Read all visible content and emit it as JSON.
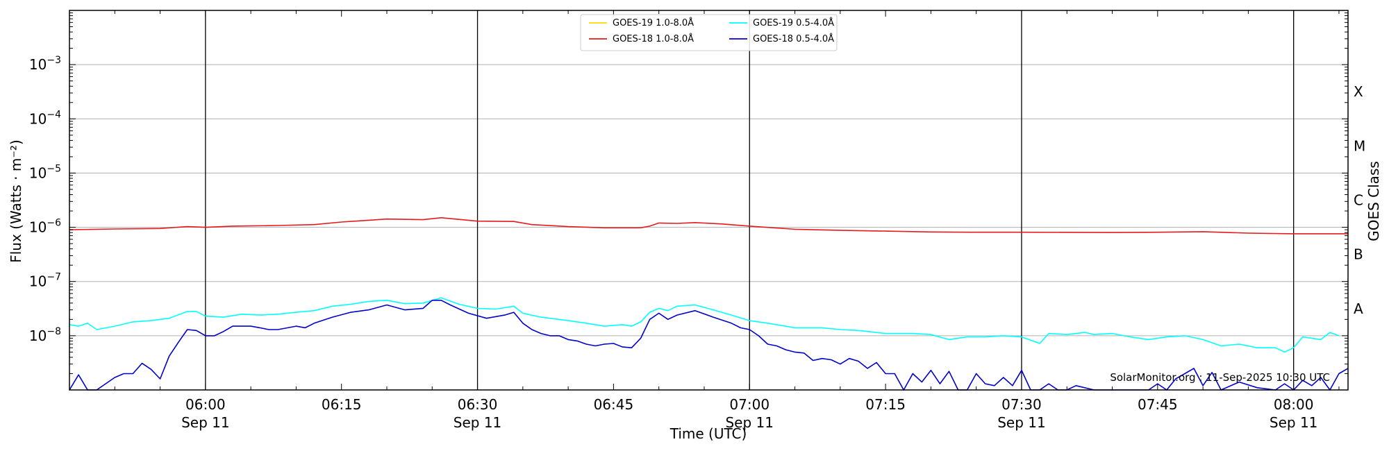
{
  "chart_data": {
    "type": "line",
    "xlabel": "Time (UTC)",
    "ylabel": "Flux (Watts · m⁻²)",
    "y2label": "GOES Class",
    "yscale": "log",
    "xlim": [
      "05:45",
      "08:06"
    ],
    "ylim": [
      1e-09,
      0.01
    ],
    "grid": "horizontal",
    "legend_position": "top-center",
    "credit": "SolarMonitor.org : 11-Sep-2025 10:30 UTC",
    "x_ticks": [
      {
        "time": "06:00",
        "label": "06:00",
        "sublabel": "Sep 11"
      },
      {
        "time": "06:15",
        "label": "06:15",
        "sublabel": ""
      },
      {
        "time": "06:30",
        "label": "06:30",
        "sublabel": "Sep 11"
      },
      {
        "time": "06:45",
        "label": "06:45",
        "sublabel": ""
      },
      {
        "time": "07:00",
        "label": "07:00",
        "sublabel": "Sep 11"
      },
      {
        "time": "07:15",
        "label": "07:15",
        "sublabel": ""
      },
      {
        "time": "07:30",
        "label": "07:30",
        "sublabel": "Sep 11"
      },
      {
        "time": "07:45",
        "label": "07:45",
        "sublabel": ""
      },
      {
        "time": "08:00",
        "label": "08:00",
        "sublabel": "Sep 11"
      }
    ],
    "vlines": [
      "06:00",
      "06:30",
      "07:00",
      "07:30",
      "08:00"
    ],
    "y_ticks": [
      {
        "exp": -3,
        "base": "10",
        "sup": "−3"
      },
      {
        "exp": -4,
        "base": "10",
        "sup": "−4"
      },
      {
        "exp": -5,
        "base": "10",
        "sup": "−5"
      },
      {
        "exp": -6,
        "base": "10",
        "sup": "−6"
      },
      {
        "exp": -7,
        "base": "10",
        "sup": "−7"
      },
      {
        "exp": -8,
        "base": "10",
        "sup": "−8"
      }
    ],
    "goes_classes": [
      {
        "label": "X",
        "value": 0.0001
      },
      {
        "label": "M",
        "value": 1e-05
      },
      {
        "label": "C",
        "value": 1e-06
      },
      {
        "label": "B",
        "value": 1e-07
      },
      {
        "label": "A",
        "value": 1e-08
      }
    ],
    "series": [
      {
        "name": "GOES-19 1.0-8.0Å",
        "color": "#ffd700",
        "points": []
      },
      {
        "name": "GOES-18 1.0-8.0Å",
        "color": "#e41a1c",
        "points": [
          [
            "05:45",
            9e-07
          ],
          [
            "05:50",
            9.3e-07
          ],
          [
            "05:55",
            9.5e-07
          ],
          [
            "05:58",
            1.03e-06
          ],
          [
            "06:00",
            1e-06
          ],
          [
            "06:03",
            1.05e-06
          ],
          [
            "06:08",
            1.08e-06
          ],
          [
            "06:12",
            1.12e-06
          ],
          [
            "06:15",
            1.25e-06
          ],
          [
            "06:18",
            1.35e-06
          ],
          [
            "06:20",
            1.42e-06
          ],
          [
            "06:24",
            1.38e-06
          ],
          [
            "06:26",
            1.5e-06
          ],
          [
            "06:30",
            1.3e-06
          ],
          [
            "06:34",
            1.28e-06
          ],
          [
            "06:36",
            1.12e-06
          ],
          [
            "06:40",
            1.03e-06
          ],
          [
            "06:44",
            9.8e-07
          ],
          [
            "06:48",
            9.8e-07
          ],
          [
            "06:49",
            1.05e-06
          ],
          [
            "06:50",
            1.2e-06
          ],
          [
            "06:52",
            1.18e-06
          ],
          [
            "06:54",
            1.22e-06
          ],
          [
            "06:57",
            1.15e-06
          ],
          [
            "07:00",
            1.05e-06
          ],
          [
            "07:05",
            9.2e-07
          ],
          [
            "07:10",
            8.8e-07
          ],
          [
            "07:15",
            8.5e-07
          ],
          [
            "07:20",
            8.2e-07
          ],
          [
            "07:25",
            8.1e-07
          ],
          [
            "07:30",
            8.1e-07
          ],
          [
            "07:40",
            8e-07
          ],
          [
            "07:45",
            8.1e-07
          ],
          [
            "07:50",
            8.3e-07
          ],
          [
            "07:55",
            7.8e-07
          ],
          [
            "08:00",
            7.6e-07
          ],
          [
            "08:06",
            7.6e-07
          ]
        ]
      },
      {
        "name": "GOES-19 0.5-4.0Å",
        "color": "#00ffff",
        "points": [
          [
            "05:45",
            1.6e-08
          ],
          [
            "05:46",
            1.5e-08
          ],
          [
            "05:47",
            1.7e-08
          ],
          [
            "05:48",
            1.3e-08
          ],
          [
            "05:50",
            1.5e-08
          ],
          [
            "05:52",
            1.8e-08
          ],
          [
            "05:54",
            1.9e-08
          ],
          [
            "05:56",
            2.1e-08
          ],
          [
            "05:58",
            2.8e-08
          ],
          [
            "05:59",
            2.8e-08
          ],
          [
            "06:00",
            2.3e-08
          ],
          [
            "06:02",
            2.2e-08
          ],
          [
            "06:04",
            2.5e-08
          ],
          [
            "06:06",
            2.4e-08
          ],
          [
            "06:08",
            2.5e-08
          ],
          [
            "06:10",
            2.7e-08
          ],
          [
            "06:12",
            2.9e-08
          ],
          [
            "06:14",
            3.5e-08
          ],
          [
            "06:16",
            3.8e-08
          ],
          [
            "06:18",
            4.3e-08
          ],
          [
            "06:20",
            4.5e-08
          ],
          [
            "06:22",
            3.9e-08
          ],
          [
            "06:24",
            4e-08
          ],
          [
            "06:26",
            5e-08
          ],
          [
            "06:28",
            3.8e-08
          ],
          [
            "06:30",
            3.2e-08
          ],
          [
            "06:32",
            3.1e-08
          ],
          [
            "06:34",
            3.5e-08
          ],
          [
            "06:35",
            2.6e-08
          ],
          [
            "06:37",
            2.2e-08
          ],
          [
            "06:40",
            1.9e-08
          ],
          [
            "06:42",
            1.7e-08
          ],
          [
            "06:44",
            1.5e-08
          ],
          [
            "06:46",
            1.6e-08
          ],
          [
            "06:47",
            1.5e-08
          ],
          [
            "06:48",
            1.8e-08
          ],
          [
            "06:49",
            2.7e-08
          ],
          [
            "06:50",
            3.2e-08
          ],
          [
            "06:51",
            2.9e-08
          ],
          [
            "06:52",
            3.5e-08
          ],
          [
            "06:54",
            3.7e-08
          ],
          [
            "06:56",
            3e-08
          ],
          [
            "06:58",
            2.4e-08
          ],
          [
            "07:00",
            1.9e-08
          ],
          [
            "07:02",
            1.7e-08
          ],
          [
            "07:05",
            1.4e-08
          ],
          [
            "07:08",
            1.4e-08
          ],
          [
            "07:10",
            1.3e-08
          ],
          [
            "07:12",
            1.25e-08
          ],
          [
            "07:15",
            1.1e-08
          ],
          [
            "07:18",
            1.1e-08
          ],
          [
            "07:20",
            1.05e-08
          ],
          [
            "07:22",
            8.5e-09
          ],
          [
            "07:24",
            9.5e-09
          ],
          [
            "07:26",
            9.5e-09
          ],
          [
            "07:28",
            1e-08
          ],
          [
            "07:30",
            9.5e-09
          ],
          [
            "07:32",
            7.2e-09
          ],
          [
            "07:33",
            1.1e-08
          ],
          [
            "07:35",
            1.05e-08
          ],
          [
            "07:37",
            1.15e-08
          ],
          [
            "07:38",
            1.05e-08
          ],
          [
            "07:40",
            1.1e-08
          ],
          [
            "07:42",
            9.5e-09
          ],
          [
            "07:44",
            8.5e-09
          ],
          [
            "07:46",
            9.5e-09
          ],
          [
            "07:48",
            1e-08
          ],
          [
            "07:50",
            8.5e-09
          ],
          [
            "07:52",
            6.5e-09
          ],
          [
            "07:54",
            7e-09
          ],
          [
            "07:56",
            6e-09
          ],
          [
            "07:58",
            6e-09
          ],
          [
            "07:59",
            5e-09
          ],
          [
            "08:00",
            6e-09
          ],
          [
            "08:01",
            9.5e-09
          ],
          [
            "08:03",
            8.5e-09
          ],
          [
            "08:04",
            1.15e-08
          ],
          [
            "08:05",
            1e-08
          ]
        ]
      },
      {
        "name": "GOES-18 0.5-4.0Å",
        "color": "#0000cc",
        "points": [
          [
            "05:45",
            1e-09
          ],
          [
            "05:46",
            1.9e-09
          ],
          [
            "05:47",
            1e-09
          ],
          [
            "05:48",
            8e-10
          ],
          [
            "05:50",
            1.7e-09
          ],
          [
            "05:51",
            2e-09
          ],
          [
            "05:52",
            2e-09
          ],
          [
            "05:53",
            3.1e-09
          ],
          [
            "05:54",
            2.4e-09
          ],
          [
            "05:55",
            1.6e-09
          ],
          [
            "05:56",
            4.2e-09
          ],
          [
            "05:57",
            7.5e-09
          ],
          [
            "05:58",
            1.3e-08
          ],
          [
            "05:59",
            1.25e-08
          ],
          [
            "06:00",
            1e-08
          ],
          [
            "06:01",
            1e-08
          ],
          [
            "06:02",
            1.2e-08
          ],
          [
            "06:03",
            1.5e-08
          ],
          [
            "06:05",
            1.5e-08
          ],
          [
            "06:06",
            1.4e-08
          ],
          [
            "06:07",
            1.3e-08
          ],
          [
            "06:08",
            1.3e-08
          ],
          [
            "06:10",
            1.5e-08
          ],
          [
            "06:11",
            1.4e-08
          ],
          [
            "06:12",
            1.7e-08
          ],
          [
            "06:14",
            2.2e-08
          ],
          [
            "06:16",
            2.7e-08
          ],
          [
            "06:18",
            3e-08
          ],
          [
            "06:20",
            3.7e-08
          ],
          [
            "06:22",
            3e-08
          ],
          [
            "06:24",
            3.2e-08
          ],
          [
            "06:25",
            4.5e-08
          ],
          [
            "06:26",
            4.5e-08
          ],
          [
            "06:27",
            3.7e-08
          ],
          [
            "06:29",
            2.6e-08
          ],
          [
            "06:31",
            2.1e-08
          ],
          [
            "06:33",
            2.4e-08
          ],
          [
            "06:34",
            2.7e-08
          ],
          [
            "06:35",
            1.7e-08
          ],
          [
            "06:36",
            1.3e-08
          ],
          [
            "06:37",
            1.1e-08
          ],
          [
            "06:38",
            1e-08
          ],
          [
            "06:39",
            1e-08
          ],
          [
            "06:40",
            8.5e-09
          ],
          [
            "06:41",
            8e-09
          ],
          [
            "06:42",
            7e-09
          ],
          [
            "06:43",
            6.5e-09
          ],
          [
            "06:44",
            7e-09
          ],
          [
            "06:45",
            7.2e-09
          ],
          [
            "06:46",
            6.2e-09
          ],
          [
            "06:47",
            6e-09
          ],
          [
            "06:48",
            9e-09
          ],
          [
            "06:49",
            2e-08
          ],
          [
            "06:50",
            2.6e-08
          ],
          [
            "06:51",
            2e-08
          ],
          [
            "06:52",
            2.4e-08
          ],
          [
            "06:54",
            2.9e-08
          ],
          [
            "06:56",
            2.2e-08
          ],
          [
            "06:58",
            1.7e-08
          ],
          [
            "06:59",
            1.4e-08
          ],
          [
            "07:00",
            1.3e-08
          ],
          [
            "07:01",
            1e-08
          ],
          [
            "07:02",
            7e-09
          ],
          [
            "07:03",
            6.5e-09
          ],
          [
            "07:04",
            5.5e-09
          ],
          [
            "07:05",
            5e-09
          ],
          [
            "07:06",
            4.8e-09
          ],
          [
            "07:07",
            3.5e-09
          ],
          [
            "07:08",
            3.8e-09
          ],
          [
            "07:09",
            3.6e-09
          ],
          [
            "07:10",
            3e-09
          ],
          [
            "07:11",
            3.8e-09
          ],
          [
            "07:12",
            3.4e-09
          ],
          [
            "07:13",
            2.5e-09
          ],
          [
            "07:14",
            3.2e-09
          ],
          [
            "07:15",
            2e-09
          ],
          [
            "07:16",
            2e-09
          ],
          [
            "07:17",
            1e-09
          ],
          [
            "07:18",
            2e-09
          ],
          [
            "07:19",
            1.4e-09
          ],
          [
            "07:20",
            2.3e-09
          ],
          [
            "07:21",
            1.3e-09
          ],
          [
            "07:22",
            2.2e-09
          ],
          [
            "07:23",
            1e-09
          ],
          [
            "07:24",
            8e-10
          ],
          [
            "07:25",
            2e-09
          ],
          [
            "07:26",
            1.3e-09
          ],
          [
            "07:27",
            1.2e-09
          ],
          [
            "07:28",
            1.7e-09
          ],
          [
            "07:29",
            1.2e-09
          ],
          [
            "07:30",
            2.3e-09
          ],
          [
            "07:31",
            8e-10
          ],
          [
            "07:32",
            1e-09
          ],
          [
            "07:33",
            1.3e-09
          ],
          [
            "07:34",
            8e-10
          ],
          [
            "07:35",
            1e-09
          ],
          [
            "07:36",
            1.2e-09
          ],
          [
            "07:38",
            8e-10
          ],
          [
            "07:40",
            9e-10
          ],
          [
            "07:42",
            8e-10
          ],
          [
            "07:44",
            1e-09
          ],
          [
            "07:45",
            1.3e-09
          ],
          [
            "07:46",
            1e-09
          ],
          [
            "07:47",
            1.6e-09
          ],
          [
            "07:48",
            2e-09
          ],
          [
            "07:49",
            2.5e-09
          ],
          [
            "07:50",
            1.2e-09
          ],
          [
            "07:51",
            2.1e-09
          ],
          [
            "07:52",
            9e-10
          ],
          [
            "07:54",
            1.4e-09
          ],
          [
            "07:56",
            1.1e-09
          ],
          [
            "07:58",
            1e-09
          ],
          [
            "07:59",
            1.3e-09
          ],
          [
            "08:00",
            1e-09
          ],
          [
            "08:01",
            1.5e-09
          ],
          [
            "08:02",
            1.2e-09
          ],
          [
            "08:03",
            1.7e-09
          ],
          [
            "08:04",
            1e-09
          ],
          [
            "08:05",
            2e-09
          ],
          [
            "08:06",
            2.5e-09
          ]
        ]
      }
    ]
  }
}
